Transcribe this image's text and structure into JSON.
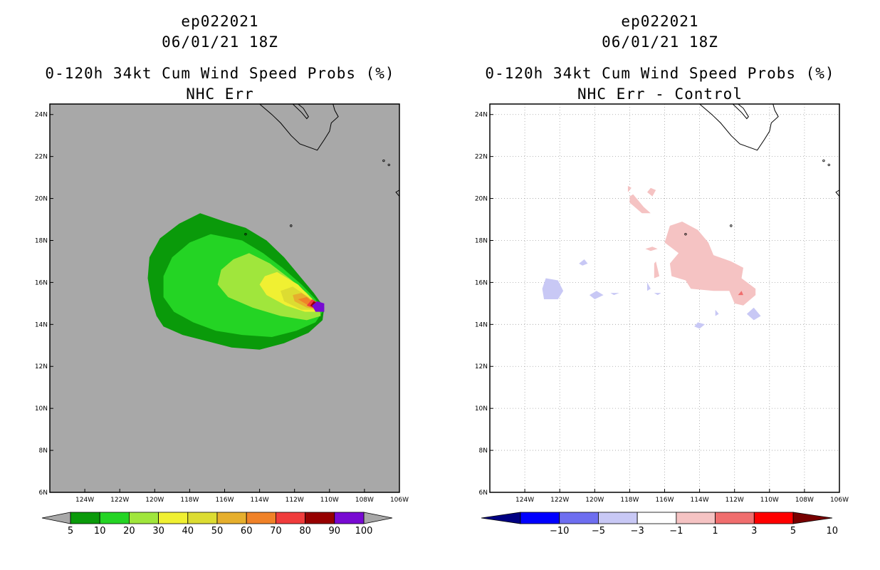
{
  "chart_data": [
    {
      "type": "heatmap",
      "storm_id": "ep022021",
      "date": "06/01/21 18Z",
      "title": "0-120h 34kt Cum Wind Speed Probs (%)",
      "subtitle": "NHC Err",
      "lon_range": [
        -126,
        -106
      ],
      "lat_range": [
        6,
        24.5
      ],
      "x_ticks": [
        "124W",
        "122W",
        "120W",
        "118W",
        "116W",
        "114W",
        "112W",
        "110W",
        "108W",
        "106W"
      ],
      "y_ticks": [
        "6N",
        "8N",
        "10N",
        "12N",
        "14N",
        "16N",
        "18N",
        "20N",
        "22N",
        "24N"
      ],
      "grid": false,
      "background_color": "#a8a8a8",
      "colorbar": {
        "labels": [
          "5",
          "10",
          "20",
          "30",
          "40",
          "50",
          "60",
          "70",
          "80",
          "90",
          "100"
        ],
        "colors": [
          "#0a9a0a",
          "#24d424",
          "#a0e63c",
          "#f0f032",
          "#dcdc32",
          "#e6af2d",
          "#f08228",
          "#f03c3c",
          "#960000",
          "#780ad2"
        ]
      },
      "contours": [
        {
          "min": 5,
          "color": "#0a9a0a",
          "points": [
            [
              -117.4,
              19.3
            ],
            [
              -116.0,
              18.9
            ],
            [
              -114.8,
              18.6
            ],
            [
              -113.6,
              18.0
            ],
            [
              -112.6,
              17.2
            ],
            [
              -111.7,
              16.3
            ],
            [
              -110.9,
              15.5
            ],
            [
              -110.3,
              14.8
            ],
            [
              -110.4,
              14.2
            ],
            [
              -111.2,
              13.6
            ],
            [
              -112.6,
              13.1
            ],
            [
              -114.0,
              12.8
            ],
            [
              -115.6,
              12.9
            ],
            [
              -117.0,
              13.2
            ],
            [
              -118.4,
              13.5
            ],
            [
              -119.5,
              13.9
            ],
            [
              -119.9,
              14.4
            ],
            [
              -120.2,
              15.2
            ],
            [
              -120.4,
              16.2
            ],
            [
              -120.3,
              17.2
            ],
            [
              -119.7,
              18.1
            ],
            [
              -118.6,
              18.8
            ]
          ]
        },
        {
          "min": 10,
          "color": "#24d424",
          "points": [
            [
              -116.8,
              18.3
            ],
            [
              -115.0,
              18.0
            ],
            [
              -113.8,
              17.4
            ],
            [
              -112.7,
              16.7
            ],
            [
              -111.6,
              15.9
            ],
            [
              -110.8,
              15.2
            ],
            [
              -110.4,
              14.6
            ],
            [
              -110.8,
              14.1
            ],
            [
              -111.9,
              13.7
            ],
            [
              -113.3,
              13.4
            ],
            [
              -115.0,
              13.5
            ],
            [
              -116.5,
              13.7
            ],
            [
              -117.8,
              14.1
            ],
            [
              -118.9,
              14.6
            ],
            [
              -119.5,
              15.3
            ],
            [
              -119.5,
              16.3
            ],
            [
              -119.0,
              17.2
            ],
            [
              -118.0,
              17.9
            ]
          ]
        },
        {
          "min": 20,
          "color": "#a0e63c",
          "points": [
            [
              -114.6,
              17.4
            ],
            [
              -113.4,
              16.9
            ],
            [
              -112.3,
              16.2
            ],
            [
              -111.3,
              15.5
            ],
            [
              -110.6,
              14.9
            ],
            [
              -110.5,
              14.4
            ],
            [
              -111.3,
              14.2
            ],
            [
              -112.8,
              14.4
            ],
            [
              -114.4,
              14.8
            ],
            [
              -115.8,
              15.3
            ],
            [
              -116.4,
              15.9
            ],
            [
              -116.2,
              16.6
            ],
            [
              -115.5,
              17.1
            ]
          ]
        },
        {
          "min": 30,
          "color": "#f0f032",
          "points": [
            [
              -113.0,
              16.5
            ],
            [
              -111.8,
              15.9
            ],
            [
              -111.0,
              15.2
            ],
            [
              -110.6,
              14.6
            ],
            [
              -111.4,
              14.6
            ],
            [
              -112.5,
              14.9
            ],
            [
              -113.6,
              15.4
            ],
            [
              -114.0,
              15.9
            ],
            [
              -113.7,
              16.3
            ]
          ]
        },
        {
          "min": 40,
          "color": "#dcdc32",
          "points": [
            [
              -112.1,
              15.8
            ],
            [
              -111.2,
              15.3
            ],
            [
              -110.7,
              14.7
            ],
            [
              -111.6,
              14.7
            ],
            [
              -112.6,
              15.1
            ],
            [
              -112.8,
              15.6
            ]
          ]
        },
        {
          "min": 50,
          "color": "#e6af2d",
          "points": [
            [
              -111.6,
              15.5
            ],
            [
              -110.9,
              15.1
            ],
            [
              -110.6,
              14.7
            ],
            [
              -111.3,
              14.8
            ],
            [
              -112.0,
              15.1
            ],
            [
              -112.1,
              15.4
            ]
          ]
        },
        {
          "min": 60,
          "color": "#f08228",
          "points": [
            [
              -111.3,
              15.3
            ],
            [
              -110.6,
              14.8
            ],
            [
              -111.2,
              14.9
            ],
            [
              -111.8,
              15.2
            ]
          ]
        },
        {
          "min": 70,
          "color": "#f03c3c",
          "points": [
            [
              -111.0,
              15.2
            ],
            [
              -110.4,
              14.9
            ],
            [
              -110.4,
              14.6
            ],
            [
              -111.3,
              14.9
            ]
          ]
        },
        {
          "min": 80,
          "color": "#960000",
          "points": [
            [
              -110.9,
              15.1
            ],
            [
              -110.4,
              14.9
            ],
            [
              -110.5,
              14.6
            ],
            [
              -111.1,
              14.9
            ]
          ]
        },
        {
          "min": 90,
          "color": "#780ad2",
          "points": [
            [
              -110.7,
              15.1
            ],
            [
              -110.3,
              15.0
            ],
            [
              -110.3,
              14.6
            ],
            [
              -110.8,
              14.6
            ],
            [
              -111.0,
              14.9
            ]
          ]
        }
      ]
    },
    {
      "type": "heatmap",
      "storm_id": "ep022021",
      "date": "06/01/21 18Z",
      "title": "0-120h 34kt Cum Wind Speed Probs (%)",
      "subtitle": "NHC Err - Control",
      "lon_range": [
        -126,
        -106
      ],
      "lat_range": [
        6,
        24.5
      ],
      "x_ticks": [
        "124W",
        "122W",
        "120W",
        "118W",
        "116W",
        "114W",
        "112W",
        "110W",
        "108W",
        "106W"
      ],
      "y_ticks": [
        "6N",
        "8N",
        "10N",
        "12N",
        "14N",
        "16N",
        "18N",
        "20N",
        "22N",
        "24N"
      ],
      "grid": true,
      "background_color": "#ffffff",
      "colorbar": {
        "labels": [
          "-10",
          "-5",
          "-3",
          "-1",
          "1",
          "3",
          "5",
          "10"
        ],
        "colors": [
          "#000082",
          "#0000ff",
          "#6e6ef0",
          "#c8c8f5",
          "#ffffff",
          "#f5c3c3",
          "#f06e6e",
          "#ff0000",
          "#780000"
        ]
      },
      "contours": [
        {
          "min": 1,
          "color": "#f5c3c3",
          "points": [
            [
              -115.0,
              18.9
            ],
            [
              -114.1,
              18.5
            ],
            [
              -113.5,
              17.9
            ],
            [
              -113.2,
              17.3
            ],
            [
              -112.2,
              17.0
            ],
            [
              -111.5,
              16.7
            ],
            [
              -111.6,
              16.2
            ],
            [
              -110.8,
              15.7
            ],
            [
              -110.8,
              15.4
            ],
            [
              -111.5,
              14.9
            ],
            [
              -112.0,
              15.0
            ],
            [
              -112.3,
              15.6
            ],
            [
              -113.2,
              15.6
            ],
            [
              -114.5,
              15.7
            ],
            [
              -114.8,
              16.1
            ],
            [
              -115.6,
              16.3
            ],
            [
              -115.7,
              16.9
            ],
            [
              -115.2,
              17.4
            ],
            [
              -116.0,
              17.9
            ],
            [
              -115.7,
              18.7
            ]
          ]
        },
        {
          "min": 1,
          "color": "#f5c3c3",
          "points": [
            [
              -117.8,
              20.2
            ],
            [
              -117.2,
              19.6
            ],
            [
              -116.8,
              19.3
            ],
            [
              -117.3,
              19.3
            ],
            [
              -118.0,
              19.8
            ],
            [
              -118.0,
              20.1
            ]
          ]
        },
        {
          "min": 1,
          "color": "#f5c3c3",
          "points": [
            [
              -116.8,
              20.5
            ],
            [
              -116.5,
              20.4
            ],
            [
              -116.7,
              20.1
            ],
            [
              -117.0,
              20.3
            ]
          ]
        },
        {
          "min": 1,
          "color": "#f5c3c3",
          "points": [
            [
              -118.1,
              20.6
            ],
            [
              -117.9,
              20.5
            ],
            [
              -118.1,
              20.3
            ]
          ]
        },
        {
          "min": 1,
          "color": "#f5c3c3",
          "points": [
            [
              -116.7,
              17.7
            ],
            [
              -116.4,
              17.6
            ],
            [
              -116.8,
              17.5
            ],
            [
              -117.1,
              17.6
            ]
          ]
        },
        {
          "min": 1,
          "color": "#f5c3c3",
          "points": [
            [
              -116.5,
              17.0
            ],
            [
              -116.3,
              16.3
            ],
            [
              -116.6,
              16.2
            ],
            [
              -116.6,
              16.9
            ]
          ]
        },
        {
          "min": 3,
          "color": "#f06e6e",
          "points": [
            [
              -111.6,
              15.6
            ],
            [
              -111.5,
              15.4
            ],
            [
              -111.8,
              15.4
            ]
          ]
        },
        {
          "min": -3,
          "color": "#c8c8f5",
          "points": [
            [
              -122.8,
              16.2
            ],
            [
              -122.1,
              16.1
            ],
            [
              -121.8,
              15.6
            ],
            [
              -122.1,
              15.2
            ],
            [
              -122.9,
              15.2
            ],
            [
              -123.0,
              15.7
            ]
          ]
        },
        {
          "min": -3,
          "color": "#c8c8f5",
          "points": [
            [
              -119.9,
              15.6
            ],
            [
              -119.5,
              15.4
            ],
            [
              -120.0,
              15.2
            ],
            [
              -120.3,
              15.4
            ]
          ]
        },
        {
          "min": -3,
          "color": "#c8c8f5",
          "points": [
            [
              -120.6,
              17.1
            ],
            [
              -120.4,
              16.9
            ],
            [
              -120.7,
              16.8
            ],
            [
              -120.9,
              16.9
            ]
          ]
        },
        {
          "min": -3,
          "color": "#c8c8f5",
          "points": [
            [
              -119.1,
              15.5
            ],
            [
              -118.6,
              15.5
            ],
            [
              -118.9,
              15.4
            ]
          ]
        },
        {
          "min": -3,
          "color": "#c8c8f5",
          "points": [
            [
              -117.0,
              16.0
            ],
            [
              -116.8,
              15.7
            ],
            [
              -117.0,
              15.6
            ]
          ]
        },
        {
          "min": -3,
          "color": "#c8c8f5",
          "points": [
            [
              -116.6,
              15.5
            ],
            [
              -116.2,
              15.5
            ],
            [
              -116.4,
              15.4
            ]
          ]
        },
        {
          "min": -3,
          "color": "#c8c8f5",
          "points": [
            [
              -114.1,
              14.1
            ],
            [
              -113.7,
              14.0
            ],
            [
              -114.0,
              13.8
            ],
            [
              -114.3,
              13.9
            ]
          ]
        },
        {
          "min": -3,
          "color": "#c8c8f5",
          "points": [
            [
              -113.1,
              14.7
            ],
            [
              -112.9,
              14.5
            ],
            [
              -113.1,
              14.4
            ]
          ]
        },
        {
          "min": -3,
          "color": "#c8c8f5",
          "points": [
            [
              -110.9,
              14.8
            ],
            [
              -110.5,
              14.4
            ],
            [
              -110.9,
              14.2
            ],
            [
              -111.3,
              14.5
            ]
          ]
        }
      ]
    }
  ]
}
